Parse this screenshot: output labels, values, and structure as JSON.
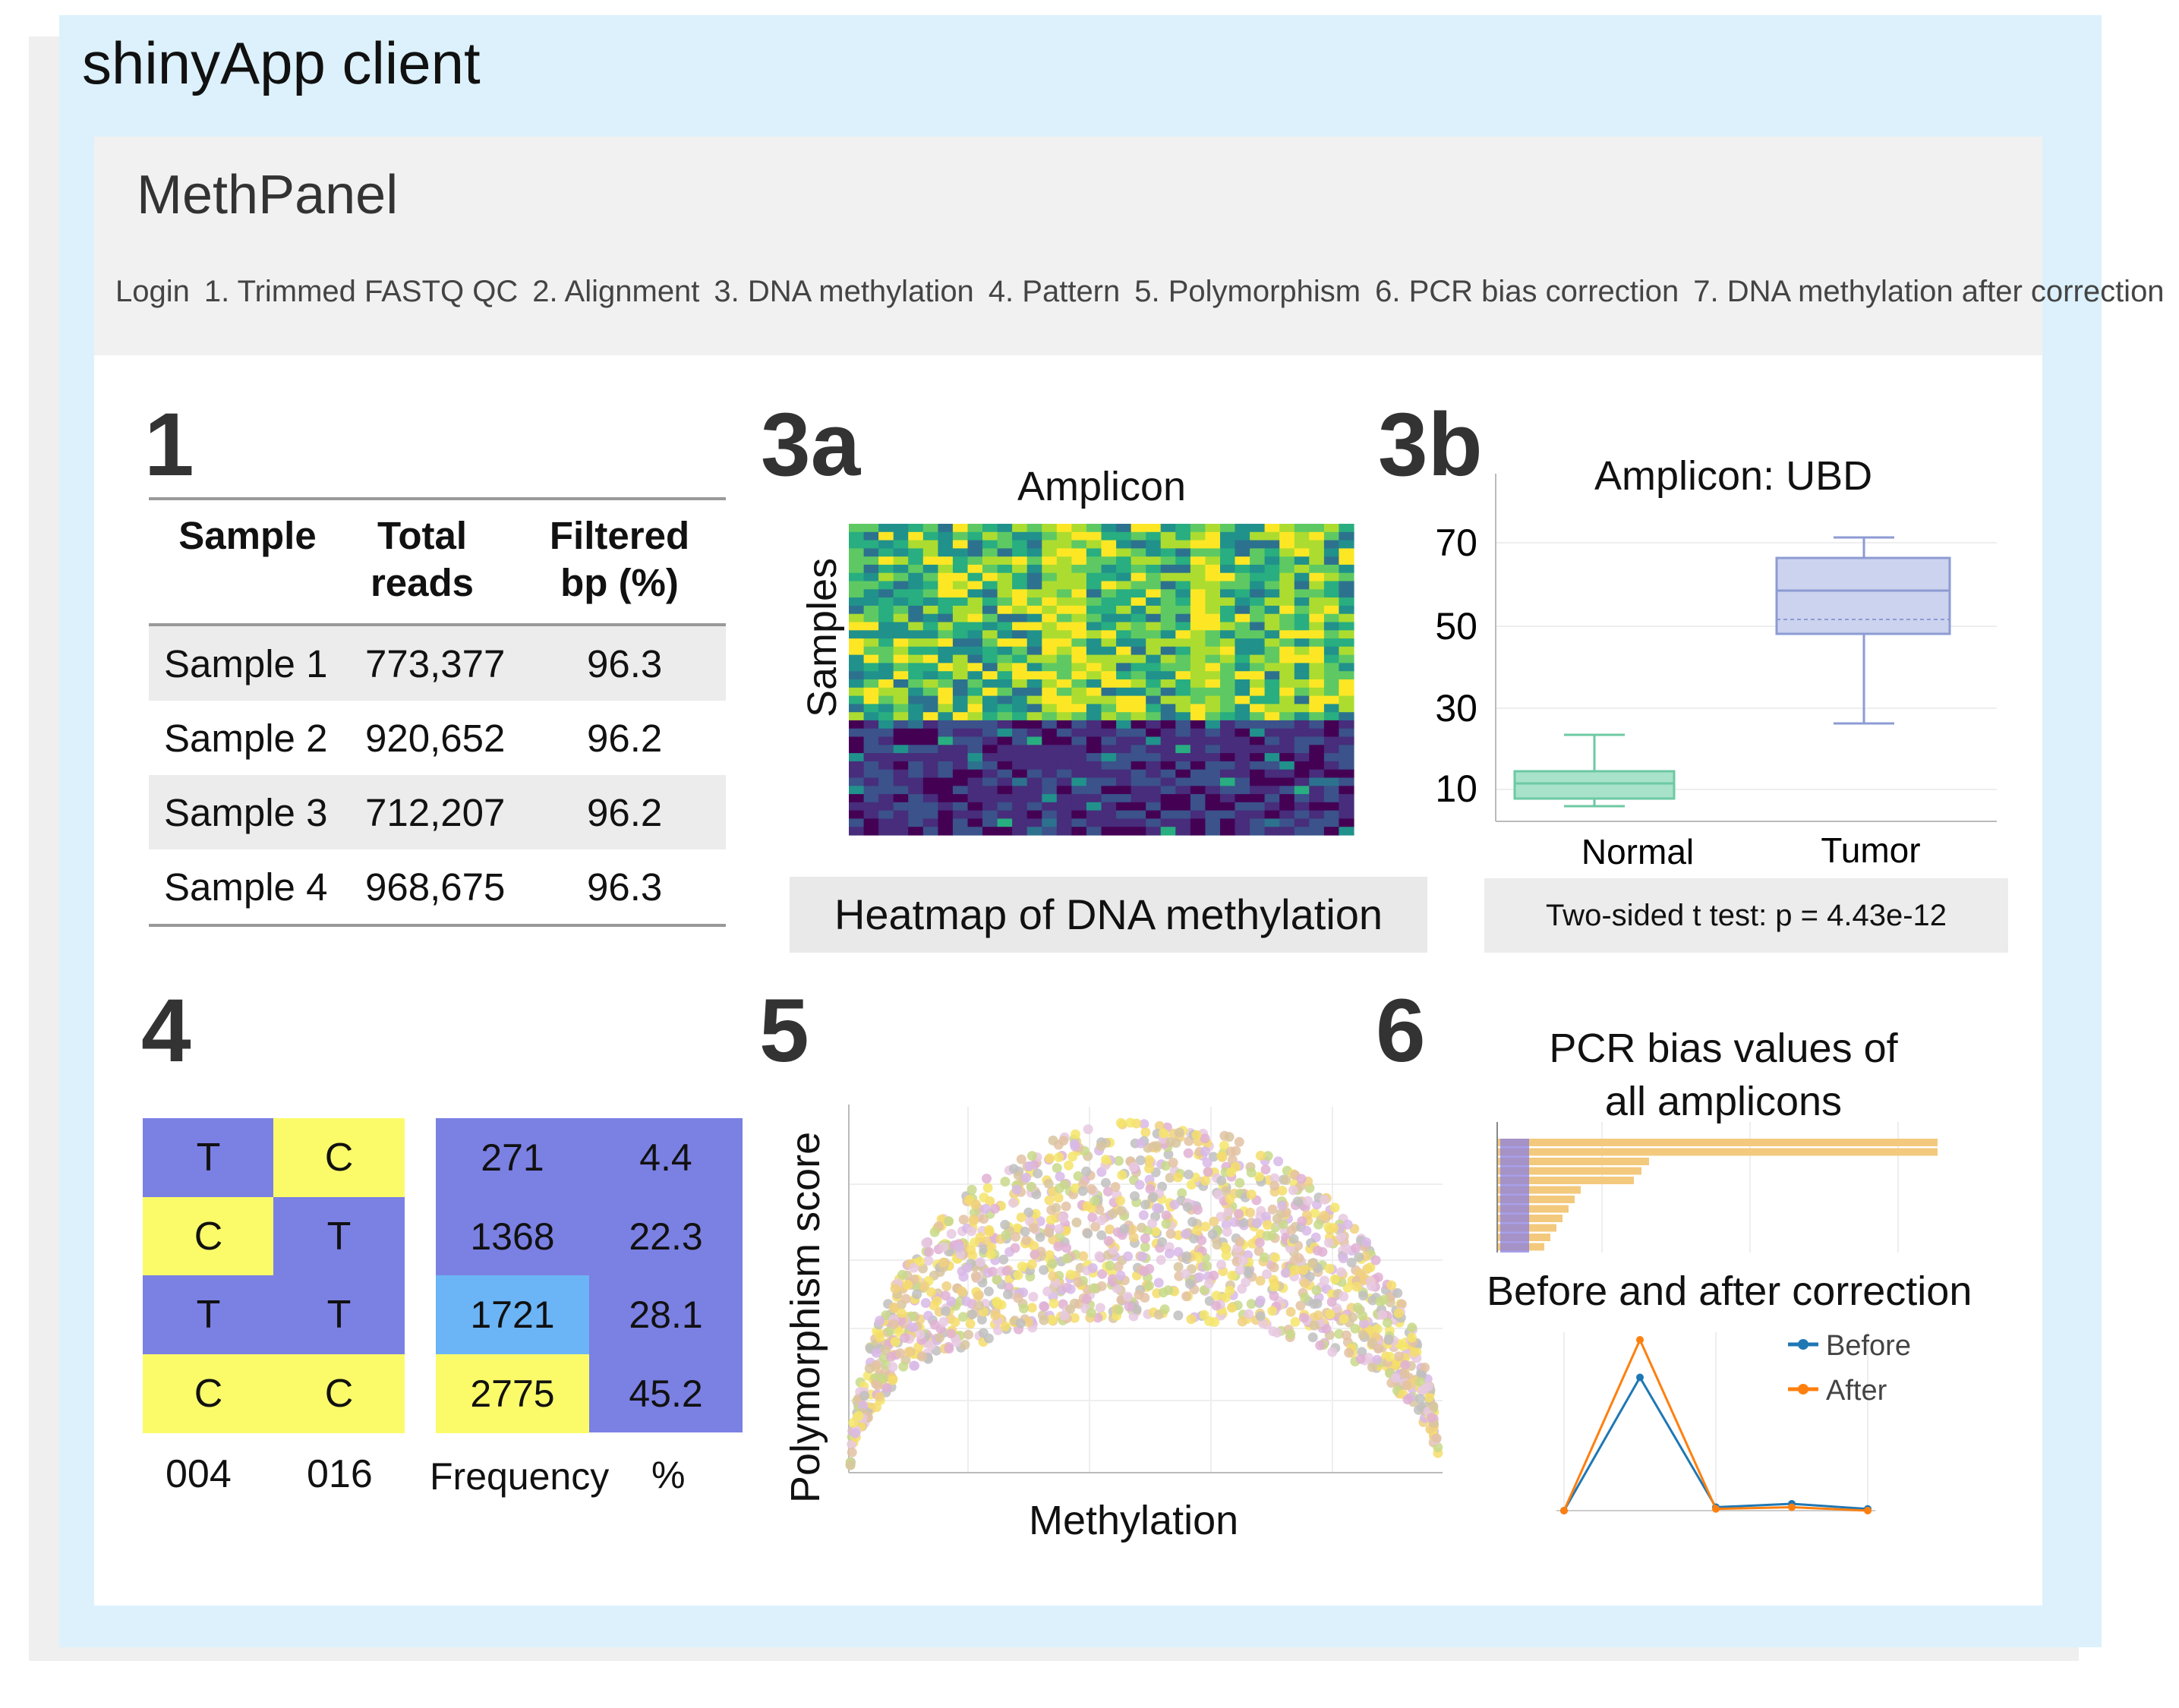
{
  "client_title": "shinyApp client",
  "app": {
    "brand": "MethPanel",
    "nav": [
      "Login",
      "1. Trimmed FASTQ QC",
      "2. Alignment",
      "3. DNA methylation",
      "4. Pattern",
      "5. Polymorphism",
      "6. PCR bias correction",
      "7. DNA methylation after correction"
    ]
  },
  "panels": {
    "p1": "1",
    "p3a": "3a",
    "p3b": "3b",
    "p4": "4",
    "p5": "5",
    "p6": "6"
  },
  "table1": {
    "headers": [
      "Sample",
      "Total reads",
      "Filtered bp (%)"
    ],
    "header_lines": [
      [
        "Sample"
      ],
      [
        "Total",
        "reads"
      ],
      [
        "Filtered",
        "bp (%)"
      ]
    ],
    "rows": [
      [
        "Sample 1",
        "773,377",
        "96.3"
      ],
      [
        "Sample 2",
        "920,652",
        "96.2"
      ],
      [
        "Sample 3",
        "712,207",
        "96.2"
      ],
      [
        "Sample 4",
        "968,675",
        "96.3"
      ]
    ]
  },
  "heatmap": {
    "title": "Amplicon",
    "ylabel": "Samples",
    "caption": "Heatmap of DNA methylation"
  },
  "boxplot": {
    "title": "Amplicon: UBD",
    "yticks": [
      "70",
      "50",
      "30",
      "10"
    ],
    "groups": [
      "Normal",
      "Tumor"
    ],
    "caption": "Two-sided t test: p = 4.43e-12",
    "colors": {
      "normal": "#7fd1b0",
      "tumor": "#a4b0dc"
    }
  },
  "pattern": {
    "cells": [
      [
        "T",
        "C"
      ],
      [
        "C",
        "T"
      ],
      [
        "T",
        "T"
      ],
      [
        "C",
        "C"
      ]
    ],
    "freq": [
      [
        "271",
        "4.4"
      ],
      [
        "1368",
        "22.3"
      ],
      [
        "1721",
        "28.1"
      ],
      [
        "2775",
        "45.2"
      ]
    ],
    "col_labels": [
      "004",
      "016",
      "Frequency",
      "%"
    ],
    "colors": {
      "T": "#7b80e3",
      "C": "#fbfb6a",
      "highlight": "#6bb4f5"
    }
  },
  "scatter": {
    "xlabel": "Methylation",
    "ylabel": "Polymorphism score"
  },
  "pcr": {
    "title_lines": [
      "PCR bias values of",
      "all amplicons"
    ],
    "line_title": "Before and after correction",
    "legend": [
      "Before",
      "After"
    ],
    "colors": {
      "before": "#1f77b4",
      "after": "#ff7f0e",
      "bar": "#f3c97d"
    },
    "chart_data": {
      "type": "line",
      "series": [
        {
          "name": "Before",
          "values": [
            0,
            0.78,
            0.02,
            0.04,
            0.01
          ]
        },
        {
          "name": "After",
          "values": [
            0,
            1.0,
            0.01,
            0.02,
            0.0
          ]
        }
      ]
    }
  }
}
